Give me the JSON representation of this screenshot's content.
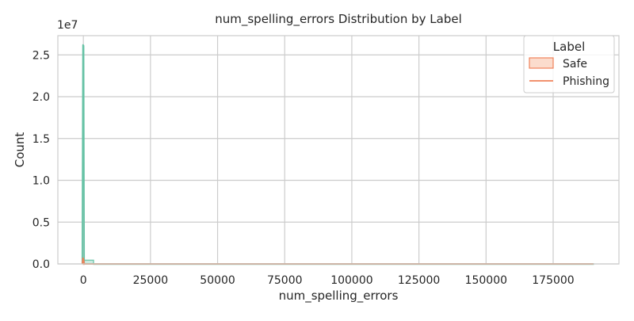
{
  "chart_data": {
    "type": "histogram",
    "title": "num_spelling_errors Distribution by Label",
    "xlabel": "num_spelling_errors",
    "ylabel": "Count",
    "y_offset_label": "1e7",
    "xlim": [
      -9500,
      199500
    ],
    "ylim": [
      0,
      27300000
    ],
    "x_ticks": [
      0,
      25000,
      50000,
      75000,
      100000,
      125000,
      150000,
      175000
    ],
    "x_tick_labels": [
      "0",
      "25000",
      "50000",
      "75000",
      "100000",
      "125000",
      "150000",
      "175000"
    ],
    "y_ticks": [
      0,
      5000000,
      10000000,
      15000000,
      20000000,
      25000000
    ],
    "y_tick_labels": [
      "0.0",
      "0.5",
      "1.0",
      "1.5",
      "2.0",
      "2.5"
    ],
    "grid": true,
    "legend": {
      "title": "Label",
      "position": "top-right",
      "entries": [
        {
          "label": "Safe",
          "style": "patch",
          "edge_color": "#f0825a",
          "fill_color": "#fbdccd"
        },
        {
          "label": "Phishing",
          "style": "line",
          "color": "#f0825a"
        }
      ]
    },
    "series": [
      {
        "name": "Phishing",
        "color": "#66c2a5",
        "bars": [
          {
            "x0": 0,
            "x1": 3800,
            "count": 450000
          },
          {
            "x0": 3800,
            "x1": 190000,
            "count": 20000
          }
        ],
        "kde": [
          {
            "x": -400,
            "y": 0
          },
          {
            "x": -150,
            "y": 26200000
          },
          {
            "x": 100,
            "y": 26100000
          },
          {
            "x": 300,
            "y": 0
          },
          {
            "x": 190000,
            "y": 0
          }
        ]
      },
      {
        "name": "Safe",
        "color": "#f0825a",
        "bars": [
          {
            "x0": 0,
            "x1": 300,
            "count": 20000
          }
        ],
        "kde": [
          {
            "x": -400,
            "y": 0
          },
          {
            "x": -150,
            "y": 700000
          },
          {
            "x": 100,
            "y": 500000
          },
          {
            "x": 300,
            "y": 0
          },
          {
            "x": 190000,
            "y": 0
          }
        ]
      }
    ]
  }
}
